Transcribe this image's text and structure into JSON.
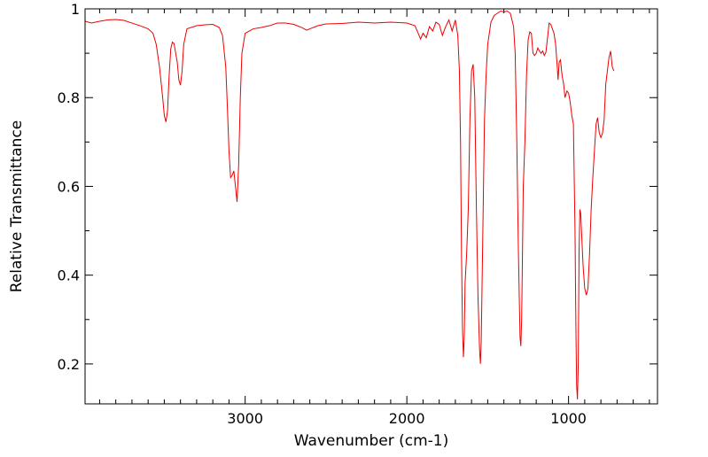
{
  "chart_data": {
    "type": "line",
    "title": "",
    "xlabel": "Wavenumber (cm-1)",
    "ylabel": "Relative Transmittance",
    "xlim": [
      3990,
      450
    ],
    "ylim": [
      0.11,
      1.0
    ],
    "x_reversed": true,
    "grid": false,
    "x_major_ticks": [
      3000,
      2000,
      1000
    ],
    "x_tick_labels": [
      "3000",
      "2000",
      "1000"
    ],
    "y_major_ticks": [
      0.2,
      0.4,
      0.6,
      0.8,
      1.0
    ],
    "y_tick_labels": [
      "0.2",
      "0.4",
      "0.6",
      "0.8",
      "1"
    ],
    "series": [
      {
        "color": "#ee0000",
        "points": [
          [
            3990,
            0.972
          ],
          [
            3950,
            0.968
          ],
          [
            3900,
            0.972
          ],
          [
            3850,
            0.975
          ],
          [
            3800,
            0.976
          ],
          [
            3750,
            0.974
          ],
          [
            3700,
            0.968
          ],
          [
            3650,
            0.962
          ],
          [
            3600,
            0.955
          ],
          [
            3570,
            0.945
          ],
          [
            3550,
            0.92
          ],
          [
            3530,
            0.87
          ],
          [
            3510,
            0.8
          ],
          [
            3500,
            0.76
          ],
          [
            3490,
            0.745
          ],
          [
            3480,
            0.77
          ],
          [
            3470,
            0.85
          ],
          [
            3460,
            0.91
          ],
          [
            3450,
            0.925
          ],
          [
            3440,
            0.922
          ],
          [
            3420,
            0.88
          ],
          [
            3410,
            0.84
          ],
          [
            3400,
            0.828
          ],
          [
            3390,
            0.86
          ],
          [
            3380,
            0.92
          ],
          [
            3360,
            0.955
          ],
          [
            3300,
            0.962
          ],
          [
            3250,
            0.964
          ],
          [
            3200,
            0.965
          ],
          [
            3160,
            0.958
          ],
          [
            3140,
            0.94
          ],
          [
            3120,
            0.87
          ],
          [
            3110,
            0.78
          ],
          [
            3100,
            0.68
          ],
          [
            3090,
            0.62
          ],
          [
            3080,
            0.625
          ],
          [
            3070,
            0.635
          ],
          [
            3060,
            0.6
          ],
          [
            3050,
            0.565
          ],
          [
            3040,
            0.65
          ],
          [
            3030,
            0.8
          ],
          [
            3020,
            0.9
          ],
          [
            3000,
            0.945
          ],
          [
            2950,
            0.955
          ],
          [
            2900,
            0.958
          ],
          [
            2850,
            0.962
          ],
          [
            2800,
            0.968
          ],
          [
            2750,
            0.968
          ],
          [
            2700,
            0.965
          ],
          [
            2650,
            0.958
          ],
          [
            2620,
            0.952
          ],
          [
            2600,
            0.955
          ],
          [
            2550,
            0.962
          ],
          [
            2500,
            0.966
          ],
          [
            2400,
            0.967
          ],
          [
            2300,
            0.97
          ],
          [
            2200,
            0.968
          ],
          [
            2100,
            0.97
          ],
          [
            2000,
            0.968
          ],
          [
            1950,
            0.962
          ],
          [
            1930,
            0.945
          ],
          [
            1915,
            0.932
          ],
          [
            1900,
            0.945
          ],
          [
            1880,
            0.935
          ],
          [
            1860,
            0.96
          ],
          [
            1840,
            0.95
          ],
          [
            1820,
            0.97
          ],
          [
            1800,
            0.965
          ],
          [
            1780,
            0.94
          ],
          [
            1760,
            0.96
          ],
          [
            1740,
            0.975
          ],
          [
            1720,
            0.95
          ],
          [
            1700,
            0.975
          ],
          [
            1685,
            0.94
          ],
          [
            1675,
            0.86
          ],
          [
            1668,
            0.7
          ],
          [
            1662,
            0.45
          ],
          [
            1656,
            0.28
          ],
          [
            1650,
            0.215
          ],
          [
            1645,
            0.26
          ],
          [
            1640,
            0.38
          ],
          [
            1630,
            0.45
          ],
          [
            1620,
            0.55
          ],
          [
            1610,
            0.75
          ],
          [
            1600,
            0.86
          ],
          [
            1590,
            0.875
          ],
          [
            1580,
            0.8
          ],
          [
            1570,
            0.55
          ],
          [
            1560,
            0.35
          ],
          [
            1550,
            0.23
          ],
          [
            1545,
            0.2
          ],
          [
            1540,
            0.25
          ],
          [
            1530,
            0.5
          ],
          [
            1520,
            0.75
          ],
          [
            1510,
            0.85
          ],
          [
            1500,
            0.92
          ],
          [
            1480,
            0.97
          ],
          [
            1460,
            0.985
          ],
          [
            1440,
            0.99
          ],
          [
            1420,
            0.995
          ],
          [
            1400,
            0.993
          ],
          [
            1380,
            0.995
          ],
          [
            1360,
            0.99
          ],
          [
            1340,
            0.96
          ],
          [
            1330,
            0.9
          ],
          [
            1320,
            0.7
          ],
          [
            1310,
            0.45
          ],
          [
            1300,
            0.26
          ],
          [
            1295,
            0.24
          ],
          [
            1290,
            0.3
          ],
          [
            1280,
            0.6
          ],
          [
            1270,
            0.7
          ],
          [
            1260,
            0.85
          ],
          [
            1250,
            0.93
          ],
          [
            1240,
            0.948
          ],
          [
            1230,
            0.945
          ],
          [
            1220,
            0.9
          ],
          [
            1210,
            0.895
          ],
          [
            1200,
            0.9
          ],
          [
            1190,
            0.912
          ],
          [
            1180,
            0.905
          ],
          [
            1170,
            0.9
          ],
          [
            1160,
            0.905
          ],
          [
            1150,
            0.895
          ],
          [
            1140,
            0.902
          ],
          [
            1130,
            0.935
          ],
          [
            1120,
            0.968
          ],
          [
            1110,
            0.965
          ],
          [
            1100,
            0.955
          ],
          [
            1090,
            0.945
          ],
          [
            1080,
            0.92
          ],
          [
            1070,
            0.87
          ],
          [
            1065,
            0.84
          ],
          [
            1058,
            0.88
          ],
          [
            1050,
            0.885
          ],
          [
            1040,
            0.85
          ],
          [
            1030,
            0.83
          ],
          [
            1022,
            0.8
          ],
          [
            1010,
            0.815
          ],
          [
            1000,
            0.81
          ],
          [
            990,
            0.79
          ],
          [
            980,
            0.76
          ],
          [
            970,
            0.74
          ],
          [
            960,
            0.5
          ],
          [
            955,
            0.3
          ],
          [
            950,
            0.15
          ],
          [
            945,
            0.12
          ],
          [
            940,
            0.2
          ],
          [
            935,
            0.45
          ],
          [
            930,
            0.548
          ],
          [
            925,
            0.54
          ],
          [
            920,
            0.5
          ],
          [
            910,
            0.42
          ],
          [
            900,
            0.37
          ],
          [
            890,
            0.355
          ],
          [
            880,
            0.37
          ],
          [
            870,
            0.45
          ],
          [
            860,
            0.55
          ],
          [
            850,
            0.62
          ],
          [
            840,
            0.68
          ],
          [
            830,
            0.74
          ],
          [
            820,
            0.755
          ],
          [
            810,
            0.72
          ],
          [
            800,
            0.71
          ],
          [
            790,
            0.72
          ],
          [
            780,
            0.75
          ],
          [
            770,
            0.83
          ],
          [
            760,
            0.86
          ],
          [
            750,
            0.89
          ],
          [
            740,
            0.905
          ],
          [
            730,
            0.87
          ],
          [
            720,
            0.86
          ]
        ]
      }
    ]
  }
}
